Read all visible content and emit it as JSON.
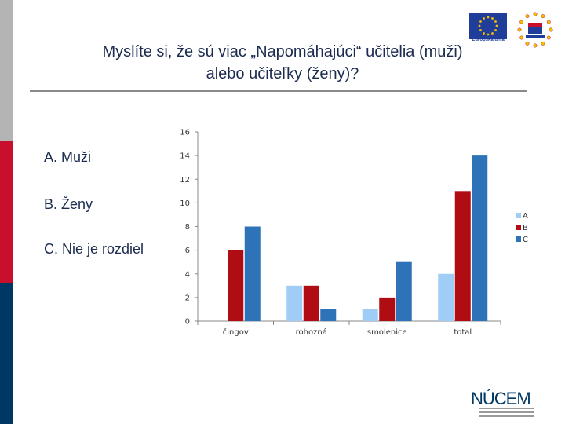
{
  "slide": {
    "title_line1": "Myslíte si, že sú viac „Napomáhajúci“ učitelia (muži)",
    "title_line2": "alebo učiteľky (ženy)?",
    "options": [
      {
        "label": "A. Muži"
      },
      {
        "label": "B. Ženy"
      },
      {
        "label": "C. Nie je rozdiel"
      }
    ]
  },
  "logos": {
    "eu_caption": "Európska únia",
    "nucem_text": "NÚCEM",
    "eu_flag_color": "#1f3d99",
    "esf_star_color": "#f2c200",
    "nucem_color": "#003865"
  },
  "chart_data": {
    "type": "bar",
    "title": "",
    "xlabel": "",
    "ylabel": "",
    "categories": [
      "čingov",
      "rohozná",
      "smolenice",
      "total"
    ],
    "series": [
      {
        "name": "A",
        "color": "#9fcdf5",
        "values": [
          0,
          3,
          1,
          4
        ]
      },
      {
        "name": "B",
        "color": "#b00c14",
        "values": [
          6,
          3,
          2,
          11
        ]
      },
      {
        "name": "C",
        "color": "#2e73b8",
        "values": [
          8,
          1,
          5,
          14
        ]
      }
    ],
    "ylim": [
      0,
      16
    ],
    "yticks": [
      "0",
      "2",
      "4",
      "6",
      "8",
      "10",
      "12",
      "14",
      "16"
    ],
    "grid": false,
    "legend_position": "right"
  }
}
